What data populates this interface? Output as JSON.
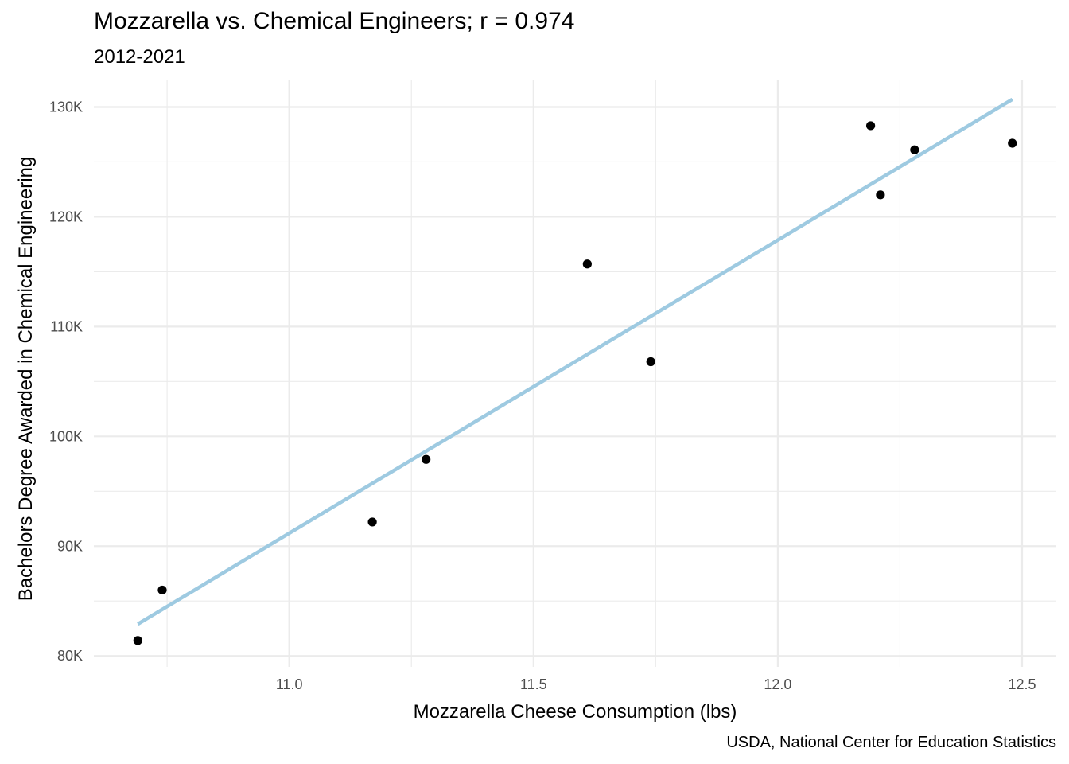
{
  "chart_data": {
    "type": "scatter",
    "title": "Mozzarella vs. Chemical Engineers; r = 0.974",
    "subtitle": "2012-2021",
    "xlabel": "Mozzarella Cheese Consumption (lbs)",
    "ylabel": "Bachelors Degree Awarded in Chemical Engineering",
    "caption": "USDA, National Center for Education Statistics",
    "xlim": [
      10.6,
      12.57
    ],
    "ylim": [
      79000,
      132500
    ],
    "x_ticks": [
      11.0,
      11.5,
      12.0,
      12.5
    ],
    "x_tick_labels": [
      "11.0",
      "11.5",
      "12.0",
      "12.5"
    ],
    "y_ticks": [
      80000,
      90000,
      100000,
      110000,
      120000,
      130000
    ],
    "y_tick_labels": [
      "80K",
      "90K",
      "100K",
      "110K",
      "120K",
      "130K"
    ],
    "grid": true,
    "points": [
      {
        "x": 10.69,
        "y": 81400
      },
      {
        "x": 10.74,
        "y": 86000
      },
      {
        "x": 11.17,
        "y": 92200
      },
      {
        "x": 11.28,
        "y": 97900
      },
      {
        "x": 11.61,
        "y": 115700
      },
      {
        "x": 11.74,
        "y": 106800
      },
      {
        "x": 12.19,
        "y": 128300
      },
      {
        "x": 12.21,
        "y": 122000
      },
      {
        "x": 12.28,
        "y": 126100
      },
      {
        "x": 12.48,
        "y": 126700
      }
    ],
    "trendline": {
      "x": [
        10.69,
        12.48
      ],
      "y": [
        82900,
        130700
      ]
    },
    "colors": {
      "points": "#000000",
      "trendline": "#9ecae1",
      "grid": "#ebebeb"
    }
  }
}
